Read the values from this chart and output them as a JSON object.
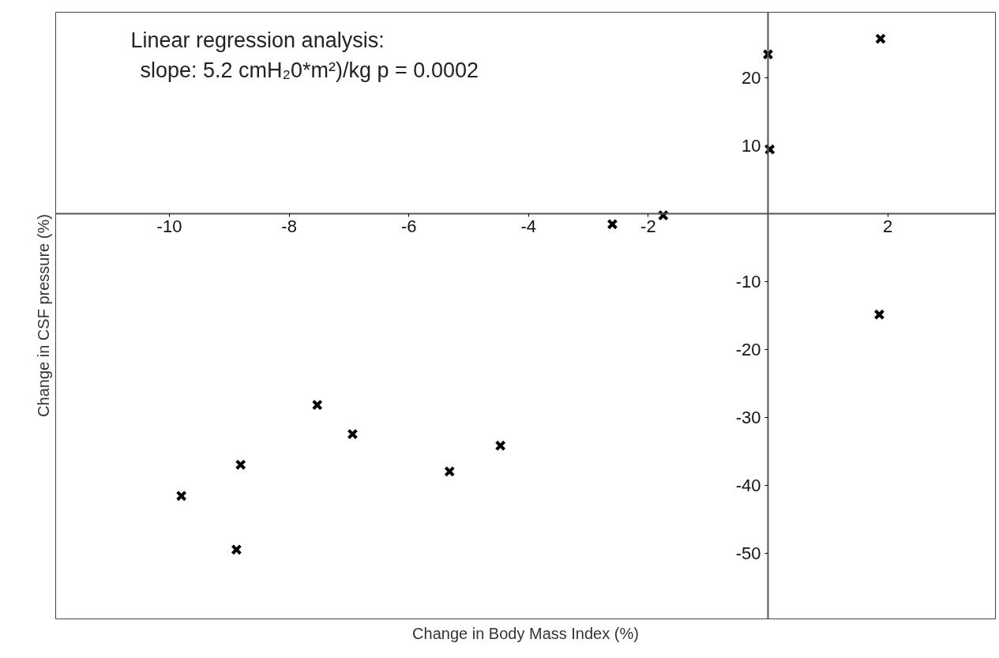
{
  "chart_data": {
    "type": "scatter",
    "xlabel": "Change in Body Mass Index (%)",
    "ylabel": "Change in CSF pressure (%)",
    "annotations": [
      "Linear regression analysis:",
      "slope: 5.2 cmH₂0*m²)/kg   p = 0.0002"
    ],
    "x": [
      -9.8,
      -8.88,
      -8.81,
      -7.53,
      -6.94,
      -5.32,
      -4.47,
      -2.6,
      -1.75,
      0,
      0.03,
      1.88,
      1.86
    ],
    "series": [
      {
        "color": "#000000",
        "values": [
          -41.6,
          -49.5,
          -37.0,
          -28.2,
          -32.5,
          -38.0,
          -34.2,
          -1.6,
          -0.3,
          23.4,
          9.4,
          25.7,
          -14.9
        ]
      }
    ],
    "xlim": [
      -11.9,
      3.8
    ],
    "ylim": [
      -59.7,
      29.6
    ],
    "xticks": [
      -10,
      -8,
      -6,
      -4,
      -2,
      2
    ],
    "yticks": [
      -50,
      -40,
      -30,
      -20,
      -10,
      10,
      20
    ],
    "grid": false,
    "marker": "cross"
  }
}
